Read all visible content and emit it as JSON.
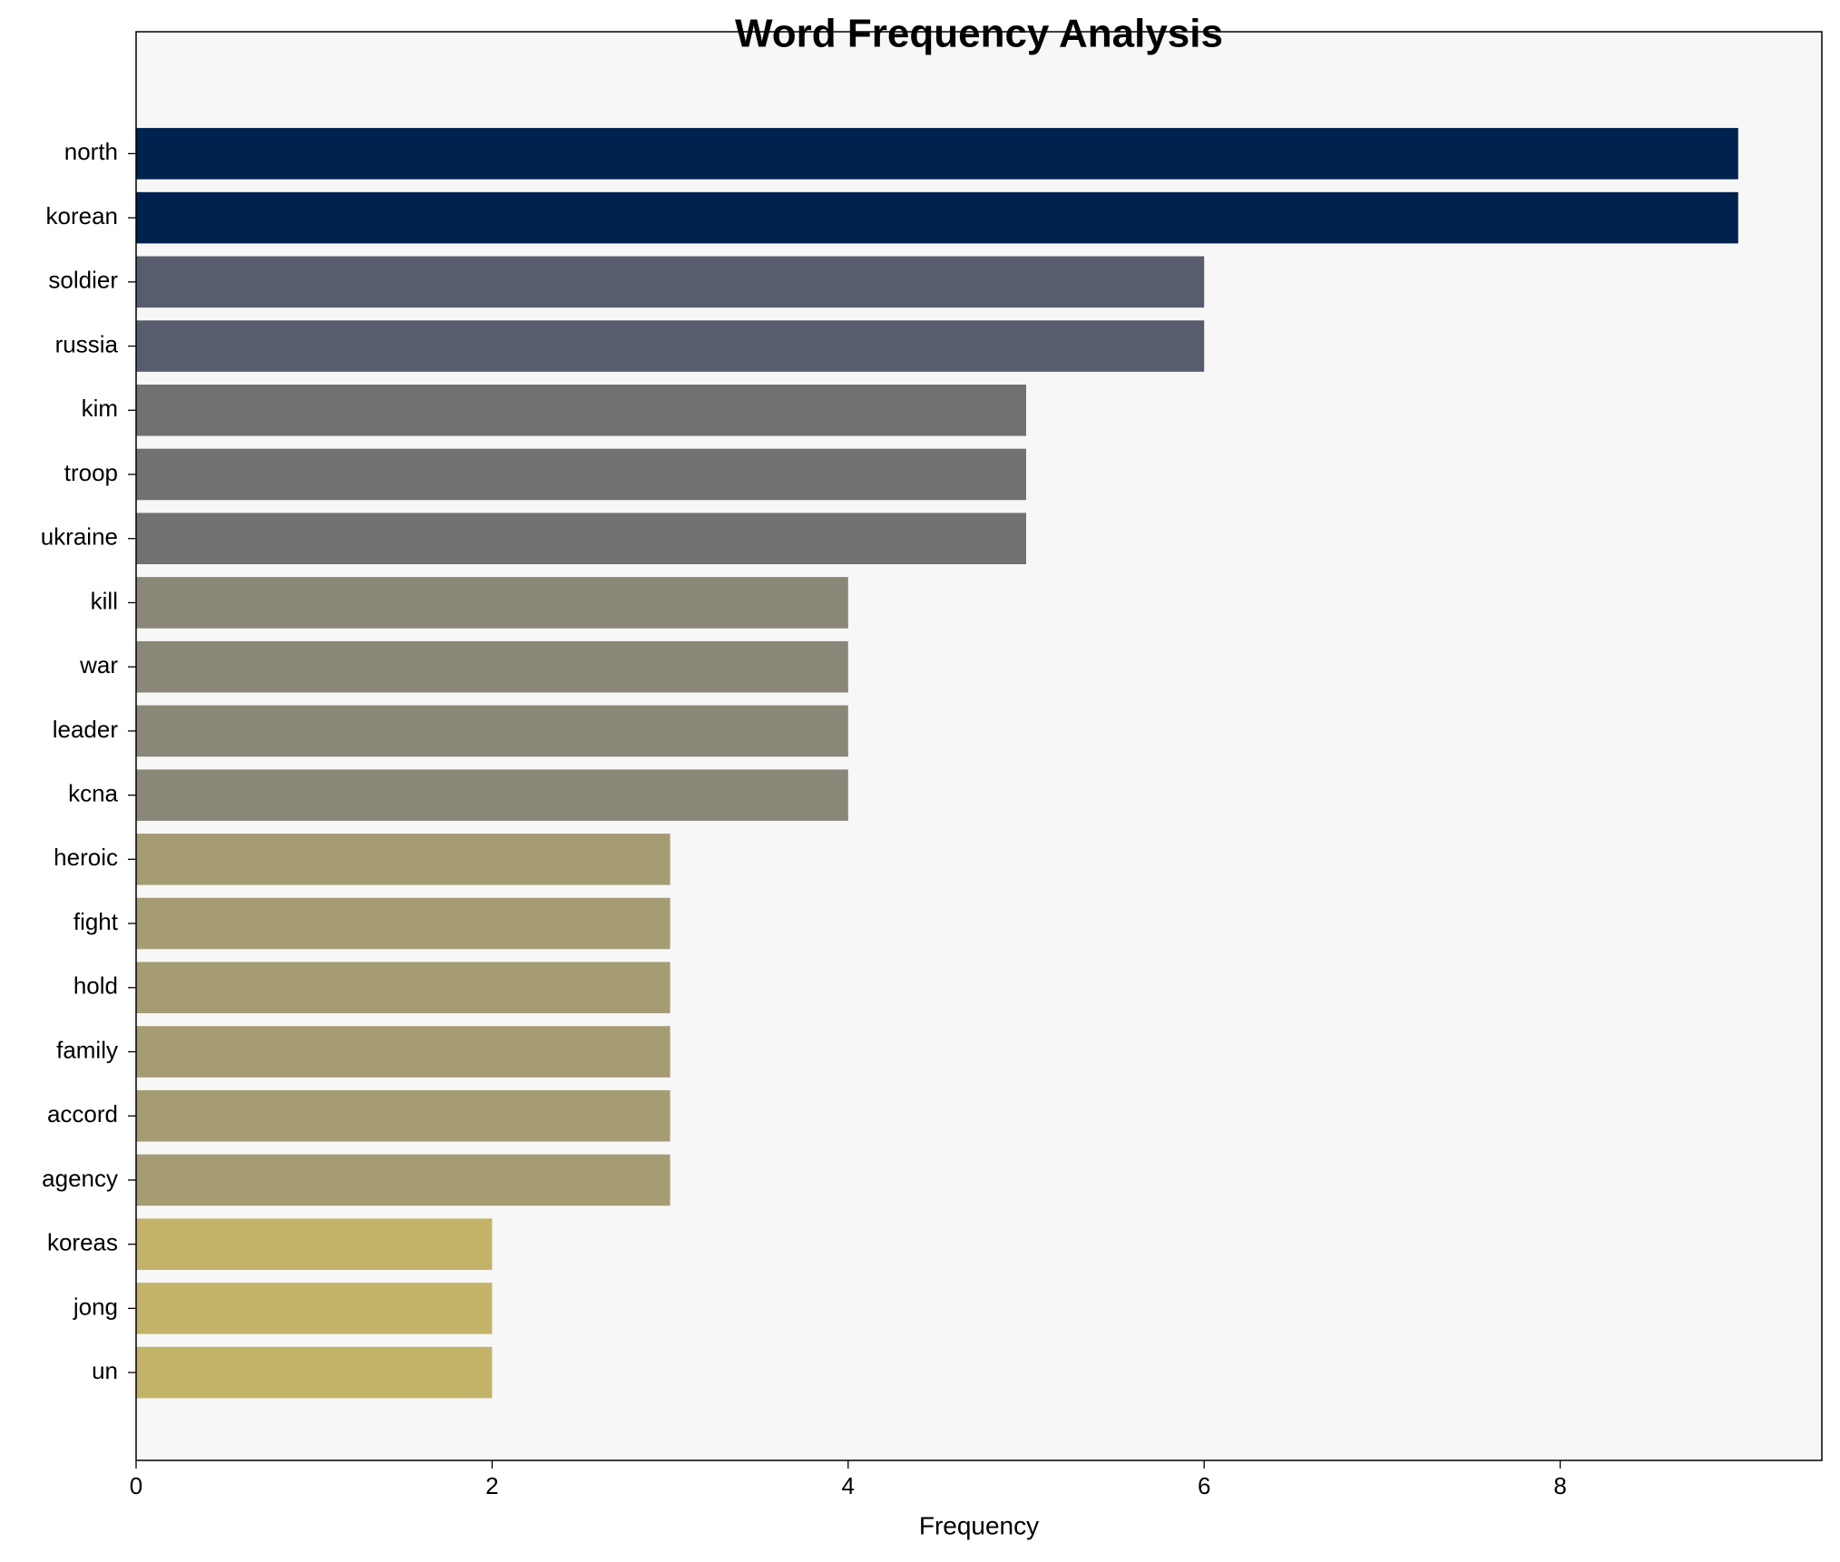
{
  "chart_data": {
    "type": "barh",
    "title": "Word Frequency Analysis",
    "xlabel": "Frequency",
    "categories": [
      "north",
      "korean",
      "soldier",
      "russia",
      "kim",
      "troop",
      "ukraine",
      "kill",
      "war",
      "leader",
      "kcna",
      "heroic",
      "fight",
      "hold",
      "family",
      "accord",
      "agency",
      "koreas",
      "jong",
      "un"
    ],
    "values": [
      9,
      9,
      6,
      6,
      5,
      5,
      5,
      4,
      4,
      4,
      4,
      3,
      3,
      3,
      3,
      3,
      3,
      2,
      2,
      2
    ],
    "colors": [
      "#00224e",
      "#00224e",
      "#575d6d",
      "#575d6d",
      "#707173",
      "#707173",
      "#707173",
      "#8a8678",
      "#8a8678",
      "#8a8678",
      "#8a8678",
      "#a59c74",
      "#a59c74",
      "#a59c74",
      "#a59c74",
      "#a59c74",
      "#a59c74",
      "#c3b369",
      "#c3b369",
      "#c3b369"
    ],
    "xlim": [
      0,
      9.47
    ],
    "xticks": [
      0,
      2,
      4,
      6,
      8
    ],
    "grid": false
  }
}
